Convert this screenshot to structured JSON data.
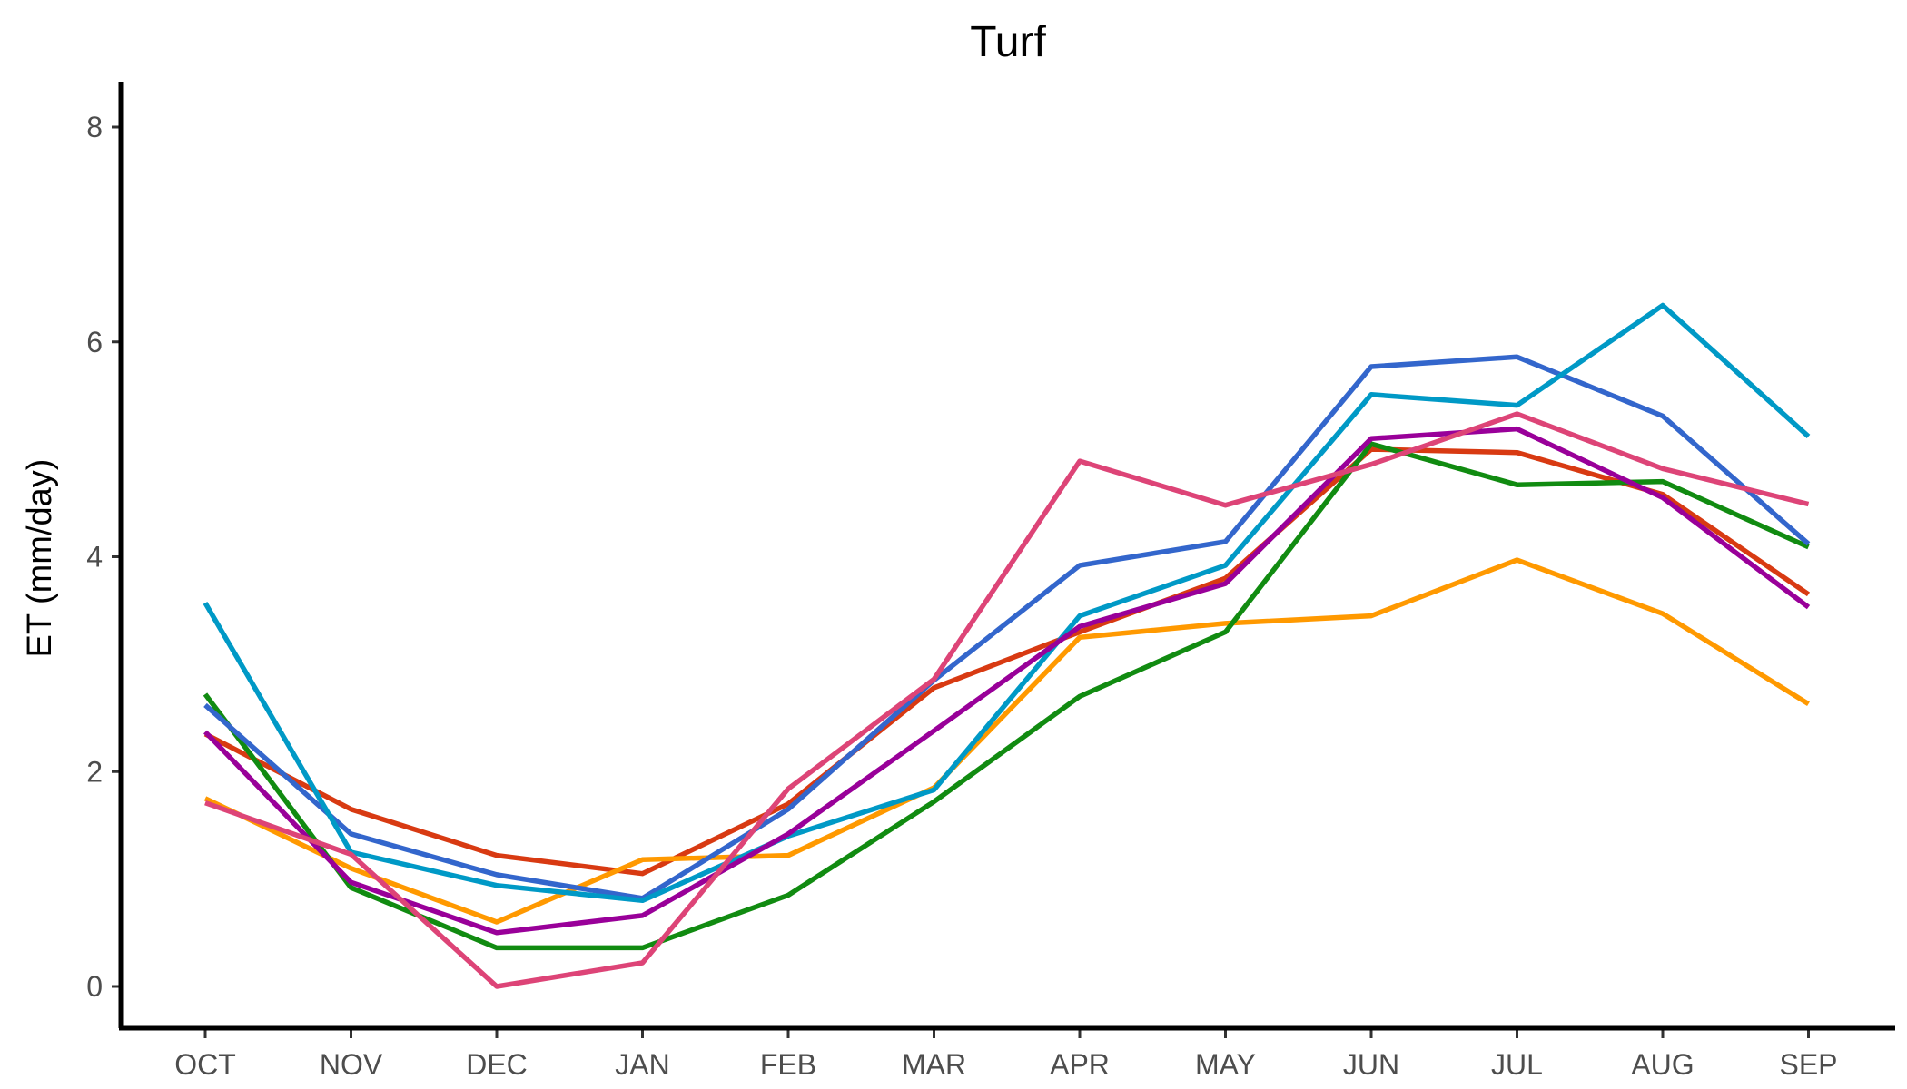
{
  "chart_data": {
    "type": "line",
    "title": "Turf",
    "xlabel": "",
    "ylabel": "ET (mm/day)",
    "categories": [
      "OCT",
      "NOV",
      "DEC",
      "JAN",
      "FEB",
      "MAR",
      "APR",
      "MAY",
      "JUN",
      "JUL",
      "AUG",
      "SEP"
    ],
    "ylim": [
      -0.4,
      8.4
    ],
    "yticks": [
      "0",
      "2",
      "4",
      "6",
      "8"
    ],
    "grid": false,
    "legend": "none",
    "series": [
      {
        "color": "#D83A12",
        "values": [
          2.35,
          1.65,
          1.22,
          1.05,
          1.7,
          2.78,
          3.3,
          3.8,
          5.0,
          4.97,
          4.58,
          3.65
        ]
      },
      {
        "color": "#FF9900",
        "values": [
          1.75,
          1.1,
          0.6,
          1.18,
          1.22,
          1.85,
          3.25,
          3.38,
          3.45,
          3.97,
          3.47,
          2.63
        ]
      },
      {
        "color": "#118B11",
        "values": [
          2.72,
          0.92,
          0.36,
          0.36,
          0.85,
          1.72,
          2.7,
          3.3,
          5.05,
          4.67,
          4.7,
          4.09
        ]
      },
      {
        "color": "#3366CC",
        "values": [
          2.62,
          1.42,
          1.04,
          0.82,
          1.65,
          2.85,
          3.92,
          4.14,
          5.77,
          5.86,
          5.31,
          4.12
        ]
      },
      {
        "color": "#0099C6",
        "values": [
          3.57,
          1.25,
          0.94,
          0.8,
          1.4,
          1.83,
          3.45,
          3.92,
          5.51,
          5.41,
          6.34,
          5.12
        ]
      },
      {
        "color": "#990099",
        "values": [
          2.37,
          0.97,
          0.5,
          0.66,
          1.42,
          2.38,
          3.35,
          3.75,
          5.1,
          5.19,
          4.55,
          3.53
        ]
      },
      {
        "color": "#DD4477",
        "values": [
          1.71,
          1.23,
          0.0,
          0.22,
          1.84,
          2.86,
          4.89,
          4.48,
          4.86,
          5.33,
          4.82,
          4.49
        ]
      }
    ]
  }
}
